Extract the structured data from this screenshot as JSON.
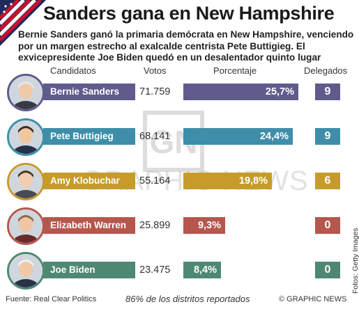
{
  "title": "Sanders gana en New Hampshire",
  "subtitle": "Bernie Sanders ganó la primaria demócrata en New Hampshire, venciendo por un margen estrecho al exalcalde centrista Pete Buttigieg. El exvicepresidente Joe Biden quedó en un desalentador quinto lugar",
  "headers": {
    "candidates": "Candidatos",
    "votes": "Votos",
    "percent": "Porcentaje",
    "delegates": "Delegados"
  },
  "chart_data": {
    "type": "bar",
    "title": "Sanders gana en New Hampshire",
    "categories": [
      "Bernie Sanders",
      "Pete Buttigieg",
      "Amy Klobuchar",
      "Elizabeth Warren",
      "Joe Biden"
    ],
    "votes": [
      "71.759",
      "68.141",
      "55.164",
      "25.899",
      "23.475"
    ],
    "values": [
      25.7,
      24.4,
      19.8,
      9.3,
      8.4
    ],
    "value_labels": [
      "25,7%",
      "24,4%",
      "19,8%",
      "9,3%",
      "8,4%"
    ],
    "delegates": [
      "9",
      "9",
      "6",
      "0",
      "0"
    ],
    "xlim": [
      0,
      28
    ],
    "colors": [
      "#5f5b8c",
      "#3e8ea9",
      "#c69b2b",
      "#b5574d",
      "#4f8872"
    ],
    "legend": "none",
    "grid": false
  },
  "watermark": "GRAPHIC NEWS",
  "credit": "Fotos: Getty Images",
  "note": "86% de los distritos reportados",
  "source": "Fuente: Real Clear Politics",
  "copyright": "© GRAPHIC NEWS"
}
